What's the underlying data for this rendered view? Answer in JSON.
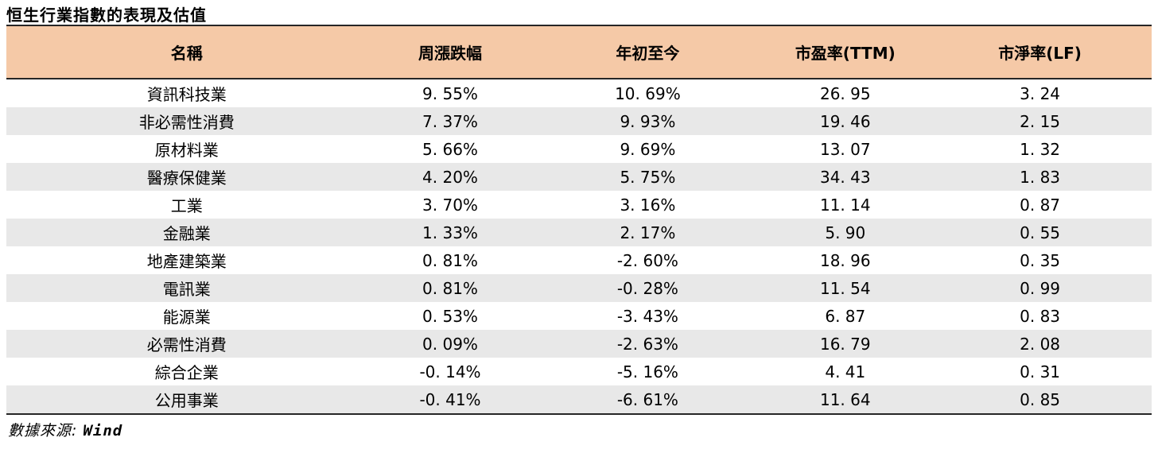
{
  "title": "恒生行業指數的表現及估值",
  "colors": {
    "header_bg": "#F5C9A7",
    "alt_row_bg": "#E8E8E8",
    "rule": "#262626"
  },
  "table": {
    "headers": [
      "名稱",
      "周漲跌幅",
      "年初至今",
      "市盈率(TTM)",
      "市淨率(LF)"
    ],
    "rows": [
      [
        "資訊科技業",
        "9. 55%",
        "10. 69%",
        "26. 95",
        "3. 24"
      ],
      [
        "非必需性消費",
        "7. 37%",
        "9. 93%",
        "19. 46",
        "2. 15"
      ],
      [
        "原材料業",
        "5. 66%",
        "9. 69%",
        "13. 07",
        "1. 32"
      ],
      [
        "醫療保健業",
        "4. 20%",
        "5. 75%",
        "34. 43",
        "1. 83"
      ],
      [
        "工業",
        "3. 70%",
        "3. 16%",
        "11. 14",
        "0. 87"
      ],
      [
        "金融業",
        "1. 33%",
        "2. 17%",
        "5. 90",
        "0. 55"
      ],
      [
        "地產建築業",
        "0. 81%",
        "-2. 60%",
        "18. 96",
        "0. 35"
      ],
      [
        "電訊業",
        "0. 81%",
        "-0. 28%",
        "11. 54",
        "0. 99"
      ],
      [
        "能源業",
        "0. 53%",
        "-3. 43%",
        "6. 87",
        "0. 83"
      ],
      [
        "必需性消費",
        "0. 09%",
        "-2. 63%",
        "16. 79",
        "2. 08"
      ],
      [
        "綜合企業",
        "-0. 14%",
        "-5. 16%",
        "4. 41",
        "0. 31"
      ],
      [
        "公用事業",
        "-0. 41%",
        "-6. 61%",
        "11. 64",
        "0. 85"
      ]
    ]
  },
  "footer": {
    "source_label": "數據來源: ",
    "source_value": "Wind"
  }
}
